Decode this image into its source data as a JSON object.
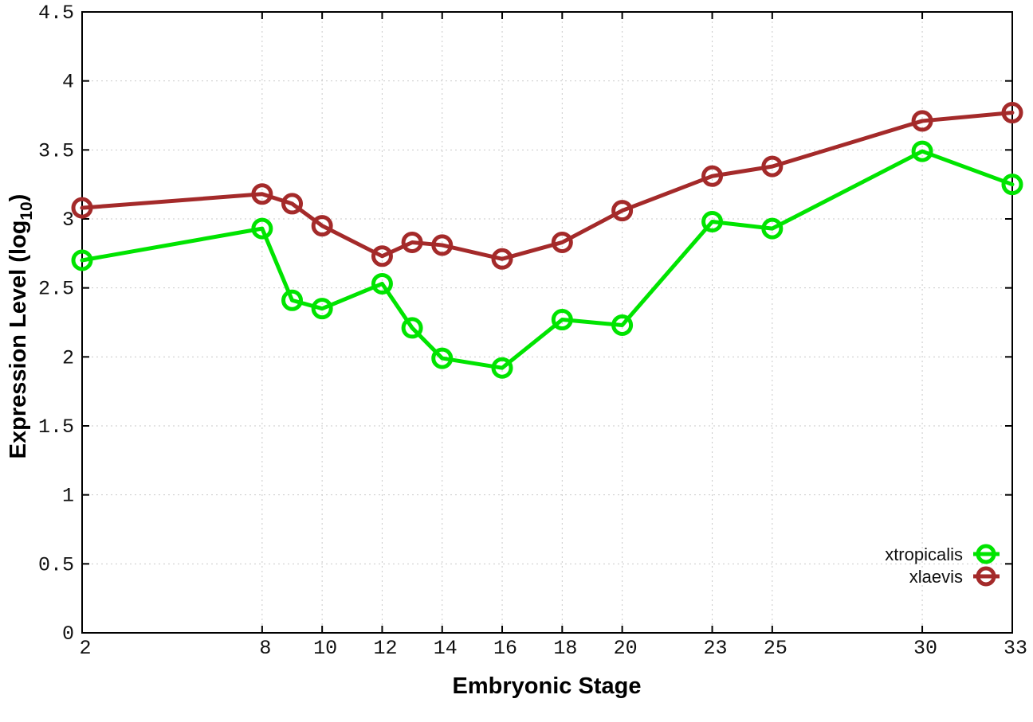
{
  "chart_data": {
    "type": "line",
    "title": "",
    "xlabel": "Embryonic Stage",
    "ylabel": "Expression Level (log10)",
    "ylabel_parts": {
      "prefix": "Expression Level (log",
      "sub": "10",
      "suffix": ")"
    },
    "x": [
      2,
      8,
      9,
      10,
      12,
      13,
      14,
      16,
      18,
      20,
      23,
      25,
      30,
      33
    ],
    "x_ticks": [
      2,
      8,
      10,
      12,
      14,
      16,
      18,
      20,
      23,
      25,
      30,
      33
    ],
    "y_ticks": [
      0,
      0.5,
      1,
      1.5,
      2,
      2.5,
      3,
      3.5,
      4,
      4.5
    ],
    "y_tick_labels": [
      "0",
      "0.5",
      "1",
      "1.5",
      "2",
      "2.5",
      "3",
      "3.5",
      "4",
      "4.5"
    ],
    "xlim": [
      2,
      33
    ],
    "ylim": [
      0,
      4.5
    ],
    "grid": true,
    "marker": "open-circle",
    "legend_position": "bottom-right",
    "series": [
      {
        "name": "xtropicalis",
        "color": "#00e400",
        "values": [
          2.7,
          2.93,
          2.41,
          2.35,
          2.53,
          2.21,
          1.99,
          1.92,
          2.27,
          2.23,
          2.98,
          2.93,
          3.49,
          3.25
        ]
      },
      {
        "name": "xlaevis",
        "color": "#a42a2a",
        "values": [
          3.08,
          3.18,
          3.11,
          2.95,
          2.73,
          2.83,
          2.81,
          2.71,
          2.83,
          3.06,
          3.31,
          3.38,
          3.71,
          3.77
        ]
      }
    ]
  }
}
